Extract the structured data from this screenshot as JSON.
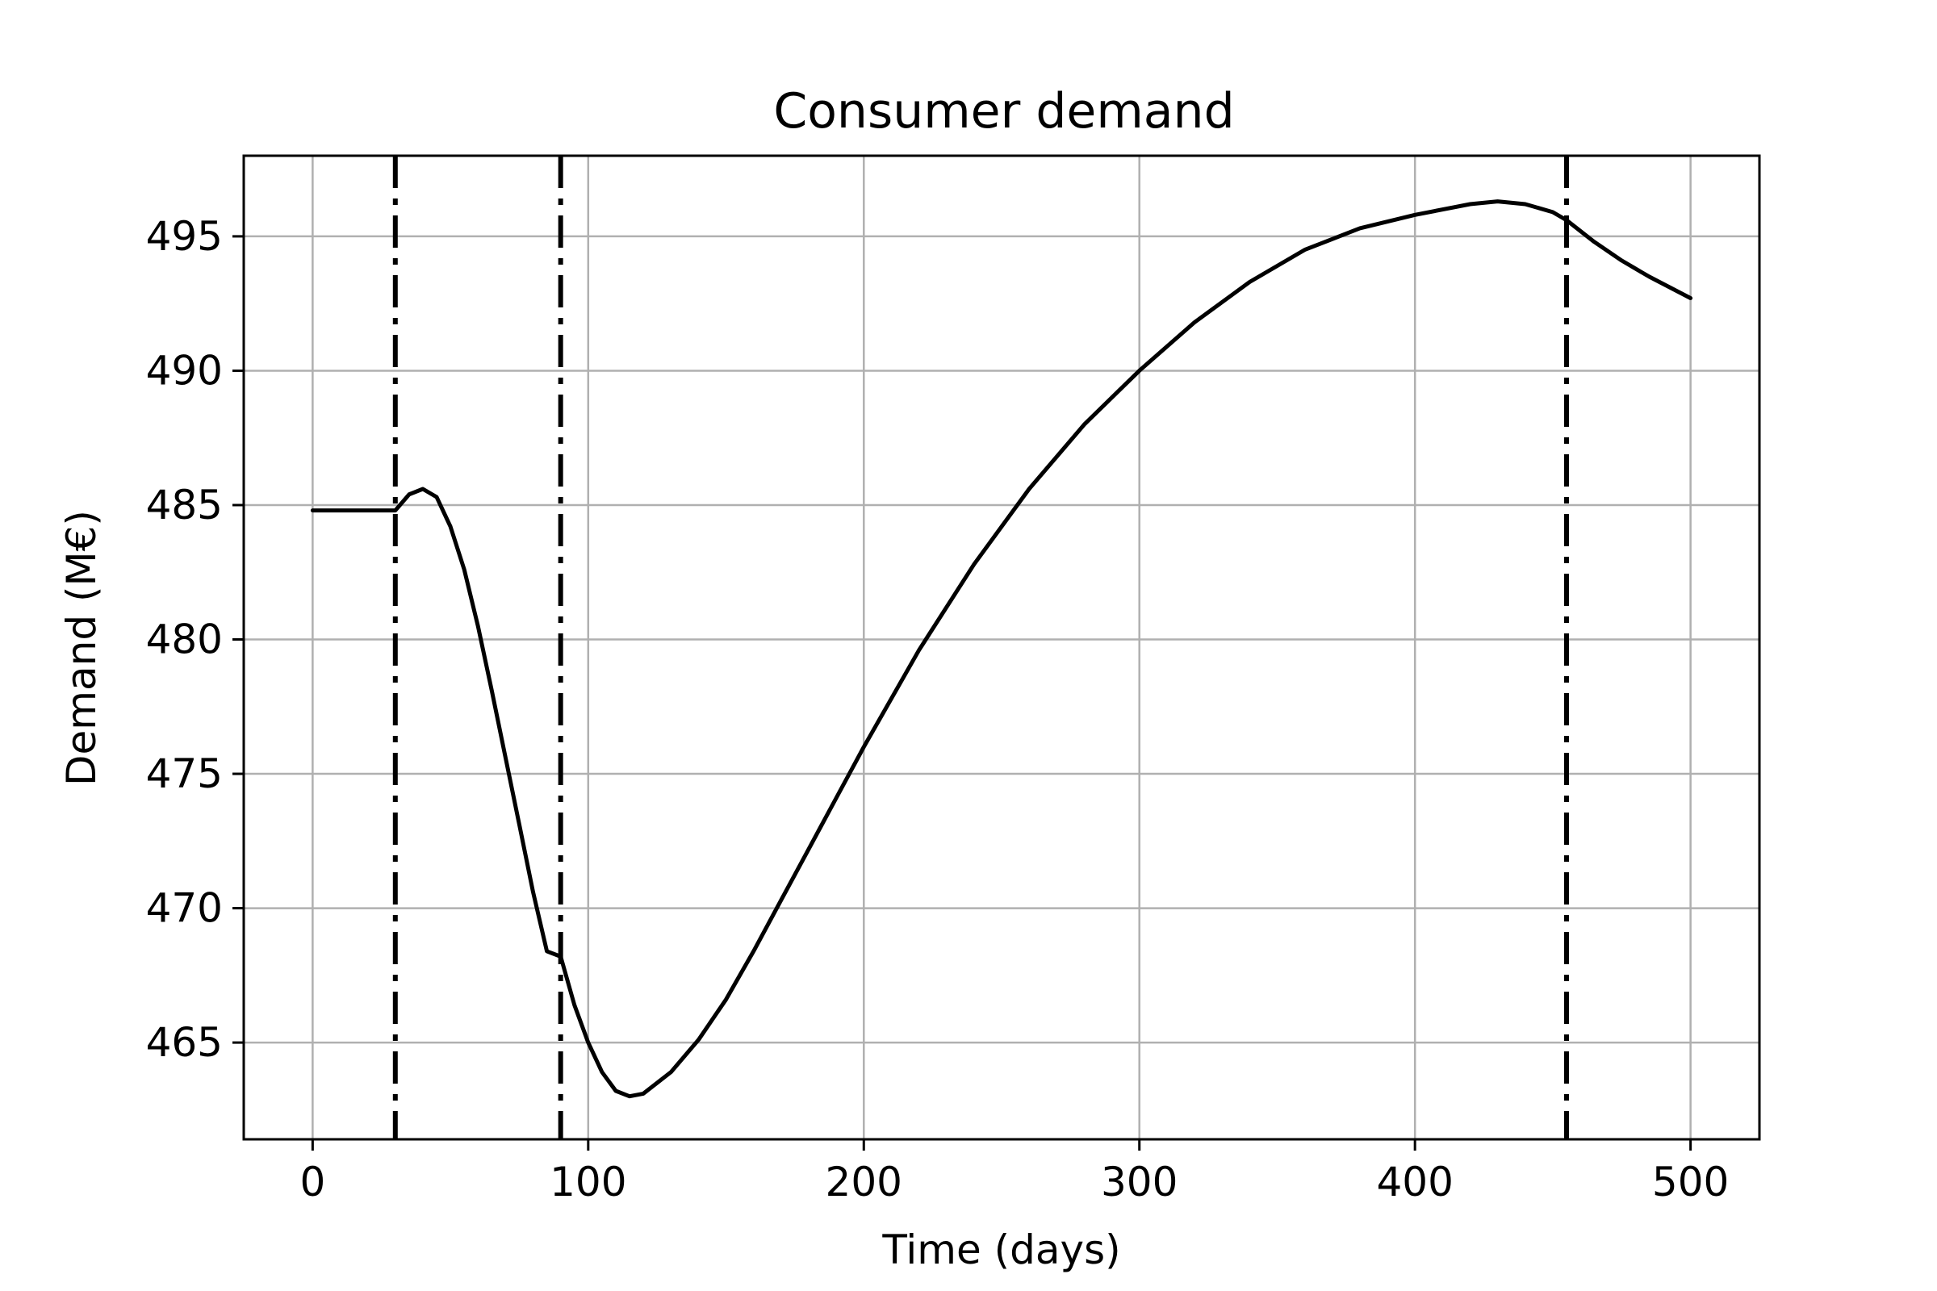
{
  "chart_data": {
    "type": "line",
    "title": "Consumer demand",
    "xlabel": "Time (days)",
    "ylabel": "Demand (M€)",
    "xlim": [
      -25,
      525
    ],
    "ylim": [
      461.4,
      498.0
    ],
    "xticks": [
      0,
      100,
      200,
      300,
      400,
      500
    ],
    "yticks": [
      465,
      470,
      475,
      480,
      485,
      490,
      495
    ],
    "grid": true,
    "legend": "none",
    "line_color": "#000000",
    "vlines": [
      30,
      90,
      455
    ],
    "series": [
      {
        "points": [
          [
            0,
            484.8
          ],
          [
            10,
            484.8
          ],
          [
            20,
            484.8
          ],
          [
            30,
            484.8
          ],
          [
            35,
            485.4
          ],
          [
            40,
            485.6
          ],
          [
            45,
            485.3
          ],
          [
            50,
            484.2
          ],
          [
            55,
            482.6
          ],
          [
            60,
            480.5
          ],
          [
            65,
            478.1
          ],
          [
            70,
            475.6
          ],
          [
            75,
            473.1
          ],
          [
            80,
            470.6
          ],
          [
            85,
            468.4
          ],
          [
            90,
            468.2
          ],
          [
            95,
            466.4
          ],
          [
            100,
            465.0
          ],
          [
            105,
            463.9
          ],
          [
            110,
            463.2
          ],
          [
            115,
            463.0
          ],
          [
            120,
            463.1
          ],
          [
            130,
            463.9
          ],
          [
            140,
            465.1
          ],
          [
            150,
            466.6
          ],
          [
            160,
            468.4
          ],
          [
            170,
            470.3
          ],
          [
            180,
            472.2
          ],
          [
            190,
            474.1
          ],
          [
            200,
            476.0
          ],
          [
            220,
            479.6
          ],
          [
            240,
            482.8
          ],
          [
            260,
            485.6
          ],
          [
            280,
            488.0
          ],
          [
            300,
            490.0
          ],
          [
            320,
            491.8
          ],
          [
            340,
            493.3
          ],
          [
            360,
            494.5
          ],
          [
            380,
            495.3
          ],
          [
            400,
            495.8
          ],
          [
            420,
            496.2
          ],
          [
            430,
            496.3
          ],
          [
            440,
            496.2
          ],
          [
            450,
            495.9
          ],
          [
            455,
            495.6
          ],
          [
            465,
            494.8
          ],
          [
            475,
            494.1
          ],
          [
            485,
            493.5
          ],
          [
            500,
            492.7
          ]
        ]
      }
    ]
  }
}
